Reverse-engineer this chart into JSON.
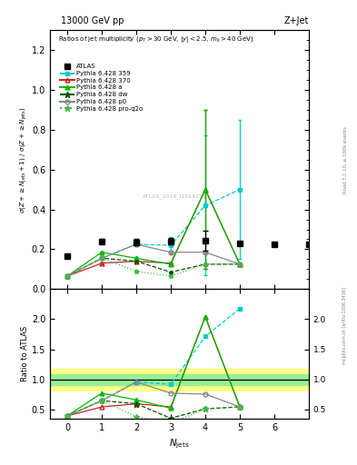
{
  "title_left": "13000 GeV pp",
  "title_right": "Z+Jet",
  "ylabel_main": "$\\sigma(Z + \\geq N_\\mathrm{jets}+1) / \\sigma(Z + \\geq N_\\mathrm{jets})$",
  "ylabel_ratio": "Ratio to ATLAS",
  "xlabel": "$N_\\mathrm{jets}$",
  "subtitle": "Ratios of jet multiplicity ($p_T > 30$ GeV, $|y| < 2.5$, $m_{ll} > 40$ GeV)",
  "rivet_label": "Rivet 3.1.10, ≥ 100k events",
  "inspire_label": "mcplots.cern.ch [arXiv:1306.3436]",
  "watermark": "ATLAS_2014_I1514251",
  "xlim": [
    -0.5,
    7.0
  ],
  "ylim_main": [
    0.0,
    1.3
  ],
  "ylim_ratio": [
    0.35,
    2.5
  ],
  "yticks_main": [
    0.0,
    0.2,
    0.4,
    0.6,
    0.8,
    1.0,
    1.2
  ],
  "yticks_ratio": [
    0.5,
    1.0,
    1.5,
    2.0
  ],
  "xticks": [
    0,
    1,
    2,
    3,
    4,
    5,
    6
  ],
  "atlas_x": [
    0,
    1,
    2,
    3,
    4,
    5,
    6,
    7
  ],
  "atlas_y": [
    0.165,
    0.24,
    0.235,
    0.24,
    0.245,
    0.23,
    0.225,
    0.225
  ],
  "atlas_yerr_lo": [
    0.01,
    0.01,
    0.015,
    0.015,
    0.05,
    0.01,
    0.01,
    0.01
  ],
  "atlas_yerr_hi": [
    0.01,
    0.01,
    0.015,
    0.015,
    0.05,
    0.01,
    0.01,
    0.01
  ],
  "py359_x": [
    0,
    1,
    2,
    3,
    4,
    5
  ],
  "py359_y": [
    0.065,
    0.155,
    0.225,
    0.22,
    0.42,
    0.5
  ],
  "py359_yerr": [
    0.002,
    0.005,
    0.005,
    0.04,
    0.35,
    0.35
  ],
  "py359_color": "#00cccc",
  "py359_label": "Pythia 6.428 359",
  "py370_x": [
    0,
    1,
    2,
    3,
    4,
    5
  ],
  "py370_y": [
    0.065,
    0.13,
    0.14,
    0.13,
    0.5,
    0.125
  ],
  "py370_yerr": [
    0.002,
    0.005,
    0.005,
    0.005,
    0.4,
    0.005
  ],
  "py370_color": "#cc2222",
  "py370_label": "Pythia 6.428 370",
  "pya_x": [
    0,
    1,
    2,
    3,
    4,
    5
  ],
  "pya_y": [
    0.065,
    0.185,
    0.155,
    0.125,
    0.5,
    0.125
  ],
  "pya_yerr": [
    0.002,
    0.005,
    0.005,
    0.005,
    0.4,
    0.005
  ],
  "pya_color": "#00bb00",
  "pya_label": "Pythia 6.428 a",
  "pydw_x": [
    0,
    1,
    2,
    3,
    4,
    5
  ],
  "pydw_y": [
    0.065,
    0.155,
    0.14,
    0.085,
    0.125,
    0.125
  ],
  "pydw_yerr": [
    0.002,
    0.005,
    0.005,
    0.005,
    0.005,
    0.005
  ],
  "pydw_color": "#005500",
  "pydw_label": "Pythia 6.428 dw",
  "pyp0_x": [
    0,
    1,
    2,
    3,
    4,
    5
  ],
  "pyp0_y": [
    0.065,
    0.155,
    0.225,
    0.185,
    0.185,
    0.125
  ],
  "pyp0_yerr": [
    0.002,
    0.005,
    0.005,
    0.005,
    0.005,
    0.005
  ],
  "pyp0_color": "#888888",
  "pyp0_label": "Pythia 6.428 p0",
  "pyproq2o_x": [
    0,
    1,
    2,
    3,
    4,
    5
  ],
  "pyproq2o_y": [
    0.065,
    0.155,
    0.09,
    0.065,
    0.125,
    0.125
  ],
  "pyproq2o_yerr": [
    0.002,
    0.005,
    0.005,
    0.005,
    0.005,
    0.005
  ],
  "pyproq2o_color": "#44bb44",
  "pyproq2o_label": "Pythia 6.428 pro-q2o",
  "band_outer_color": "#ffff88",
  "band_inner_color": "#99ee99",
  "band_outer_y_lo": 0.82,
  "band_outer_y_hi": 1.18,
  "band_inner_y_lo": 0.91,
  "band_inner_y_hi": 1.09
}
